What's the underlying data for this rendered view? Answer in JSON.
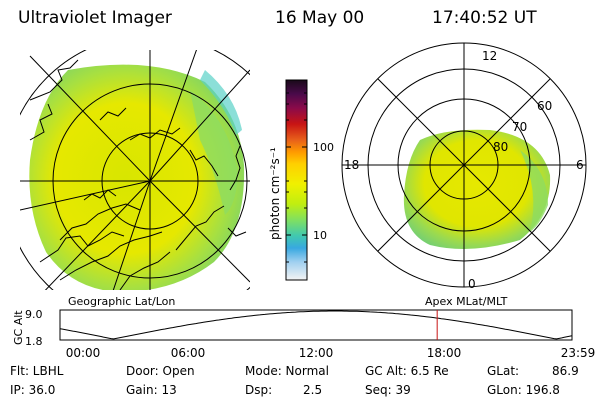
{
  "header": {
    "instrument": "Ultraviolet Imager",
    "date": "16 May 00",
    "time": "17:40:52 UT"
  },
  "colorbar": {
    "unit_label": "photon cm⁻²s⁻¹",
    "tick_labels": [
      "100",
      "10"
    ],
    "colors_top_to_bottom": [
      "#1a0a1a",
      "#3a0a3a",
      "#6b0a4a",
      "#9a0a2a",
      "#c81414",
      "#e04a14",
      "#ff8c00",
      "#ffcc00",
      "#f0f000",
      "#c8f000",
      "#8ce05a",
      "#46c8a0",
      "#32a0dc",
      "#8cc8f0",
      "#f0f0f0"
    ]
  },
  "geo_panel": {
    "label": "Geographic Lat/Lon"
  },
  "apex_panel": {
    "label": "Apex MLat/MLT",
    "mlt_labels": {
      "top": "12",
      "bottom": "0",
      "left": "18",
      "right": "6"
    },
    "mlat_labels": [
      "60",
      "70",
      "80"
    ]
  },
  "altitude_plot": {
    "ylabel": "GC Alt",
    "y_ticks": [
      "9.0",
      "1.8"
    ],
    "x_ticks": [
      "00:00",
      "06:00",
      "12:00",
      "18:00",
      "23:59"
    ],
    "current_time_hours": 17.68,
    "marker_color": "#c81414"
  },
  "info": {
    "flt": "Flt: LBHL",
    "ip": "IP: 36.0",
    "door": "Door: Open",
    "gain": "Gain: 13",
    "mode": "Mode: Normal",
    "dsp": "Dsp:",
    "dsp_value": "2.5",
    "gc_alt": "GC Alt: 6.5 Re",
    "seq": "Seq: 39",
    "glat": "GLat:",
    "glat_value": "86.9",
    "glon": "GLon: 196.8"
  },
  "colors": {
    "image_yellow": "#e8e800",
    "image_green": "#8ce05a",
    "image_cyan": "#5ad2c8"
  }
}
